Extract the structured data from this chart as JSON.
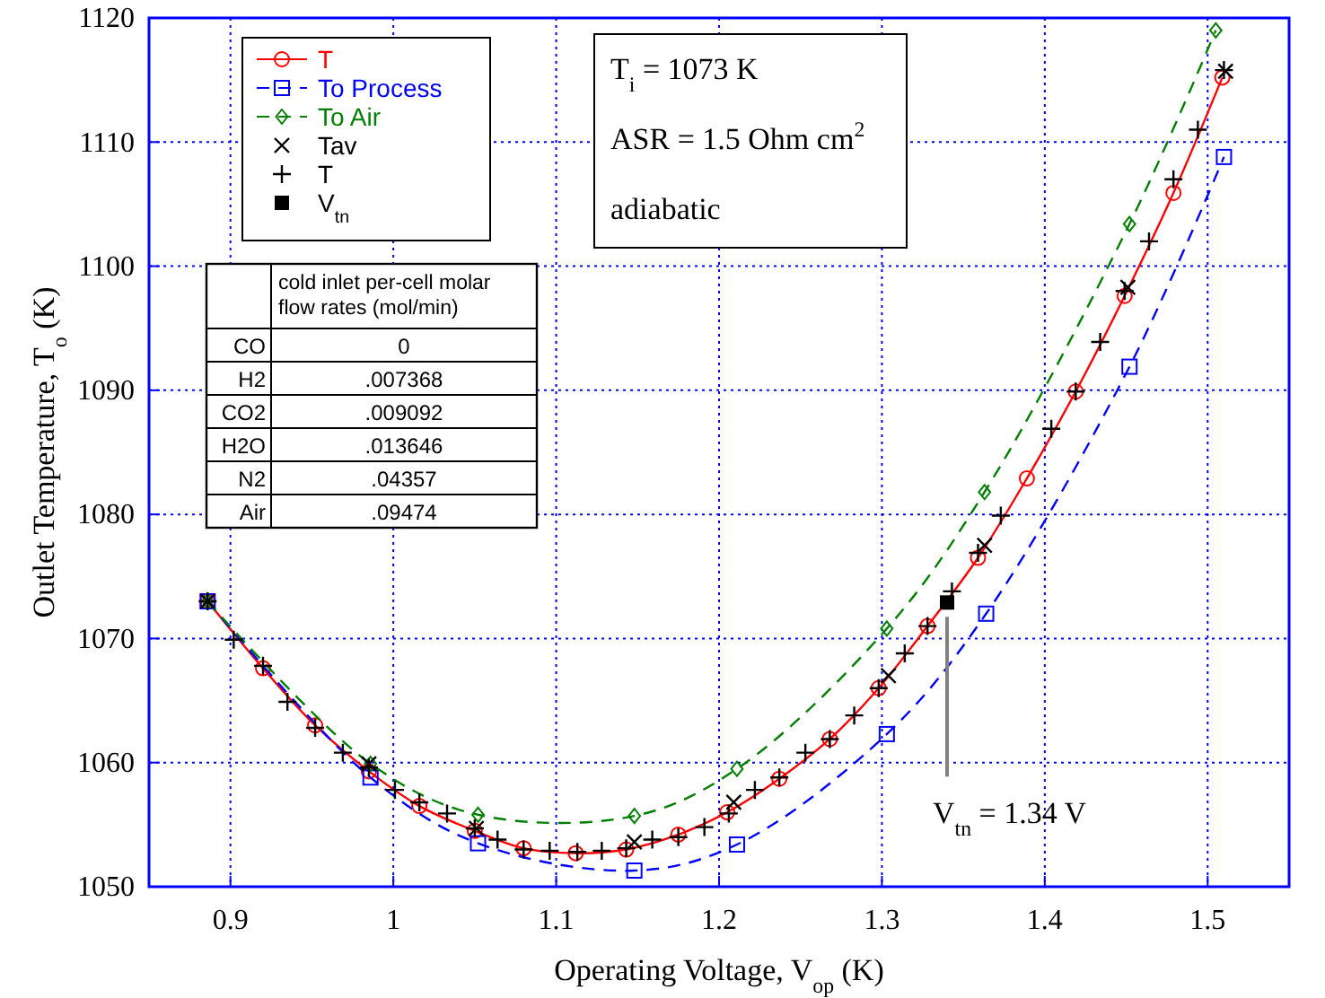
{
  "chart_data": {
    "type": "line",
    "xlabel": "Operating Voltage, V$_{op}$ (K)",
    "ylabel": "Outlet Temperature, T$_{o}$ (K)",
    "xlim": [
      0.85,
      1.55
    ],
    "xticks": [
      0.9,
      1,
      1.1,
      1.2,
      1.3,
      1.4,
      1.5
    ],
    "ylim": [
      1050,
      1120
    ],
    "yticks": [
      1050,
      1060,
      1070,
      1080,
      1090,
      1100,
      1110,
      1120
    ],
    "grid": true,
    "legend": "top left",
    "series": [
      {
        "name": "T",
        "type": "line",
        "color": "#ff0000",
        "marker": "circle",
        "line_style": "solid",
        "x": [
          0.886,
          0.92,
          0.952,
          0.985,
          1.016,
          1.05,
          1.08,
          1.112,
          1.143,
          1.175,
          1.205,
          1.237,
          1.268,
          1.298,
          1.328,
          1.359,
          1.389,
          1.419,
          1.449,
          1.479,
          1.509
        ],
        "values": [
          1073,
          1067.6,
          1063,
          1059.3,
          1056.5,
          1054.5,
          1053.1,
          1052.7,
          1053,
          1054.2,
          1056,
          1058.7,
          1061.9,
          1066,
          1071,
          1076.5,
          1082.9,
          1089.9,
          1097.6,
          1105.9,
          1115.2
        ]
      },
      {
        "name": "To Process",
        "type": "line",
        "color": "#0000ff",
        "marker": "square",
        "line_style": "dashed",
        "x": [
          0.886,
          0.986,
          1.052,
          1.148,
          1.211,
          1.303,
          1.364,
          1.452,
          1.51
        ],
        "values": [
          1073,
          1058.8,
          1053.5,
          1051.3,
          1053.4,
          1062.3,
          1072,
          1091.9,
          1108.8
        ]
      },
      {
        "name": "To Air",
        "type": "line",
        "color": "#007f00",
        "marker": "diamond",
        "line_style": "dashed",
        "x": [
          0.886,
          0.986,
          1.052,
          1.148,
          1.211,
          1.303,
          1.363,
          1.452,
          1.505
        ],
        "values": [
          1073,
          1059.9,
          1055.8,
          1055.7,
          1059.5,
          1070.8,
          1081.8,
          1103.4,
          1119
        ]
      },
      {
        "name": "Tav",
        "type": "scatter",
        "color": "#000000",
        "marker": "cross",
        "x": [
          0.886,
          0.985,
          1.051,
          1.148,
          1.209,
          1.304,
          1.363,
          1.451,
          1.511
        ],
        "values": [
          1073,
          1059.9,
          1054.7,
          1053.6,
          1056.8,
          1067,
          1077.5,
          1098.3,
          1115.7
        ]
      },
      {
        "name": "T",
        "type": "scatter",
        "color": "#000000",
        "marker": "plus",
        "x": [
          0.886,
          0.902,
          0.92,
          0.935,
          0.952,
          0.969,
          0.985,
          1.001,
          1.016,
          1.033,
          1.05,
          1.064,
          1.08,
          1.096,
          1.113,
          1.128,
          1.143,
          1.159,
          1.175,
          1.191,
          1.206,
          1.222,
          1.237,
          1.253,
          1.268,
          1.283,
          1.298,
          1.314,
          1.328,
          1.343,
          1.359,
          1.373,
          1.404,
          1.419,
          1.434,
          1.449,
          1.464,
          1.479,
          1.494,
          1.51
        ],
        "values": [
          1073,
          1069.9,
          1067.8,
          1064.9,
          1062.8,
          1060.8,
          1059.6,
          1057.8,
          1056.8,
          1055.9,
          1054.7,
          1053.8,
          1053,
          1052.9,
          1052.8,
          1052.9,
          1053.1,
          1053.8,
          1054,
          1054.8,
          1055.9,
          1057.8,
          1058.8,
          1060.8,
          1061.9,
          1063.8,
          1066,
          1068.8,
          1071,
          1073.8,
          1076.9,
          1079.9,
          1086.9,
          1089.9,
          1093.9,
          1098,
          1102,
          1107,
          1111,
          1115.8
        ]
      },
      {
        "name": "V$_{tn}$",
        "type": "scatter",
        "color": "#000000",
        "marker": "square-filled",
        "x": [
          1.34
        ],
        "values": [
          1072.9
        ]
      }
    ],
    "annotations": [
      "T$_{i}$ = 1073 K",
      "ASR = 1.5 Ohm cm$^{2}$",
      "adiabatic",
      {
        "text": "V$_{tn}$ = 1.34 V",
        "x": 1.34,
        "y": 1072.9
      },
      "cold inlet per-cell molar flow rates (mol/min)",
      "CO",
      "0",
      "H2",
      ".007368",
      "CO2",
      ".009092",
      "H2O",
      ".013646",
      "N2",
      ".04357",
      "Air",
      ".09474"
    ]
  }
}
